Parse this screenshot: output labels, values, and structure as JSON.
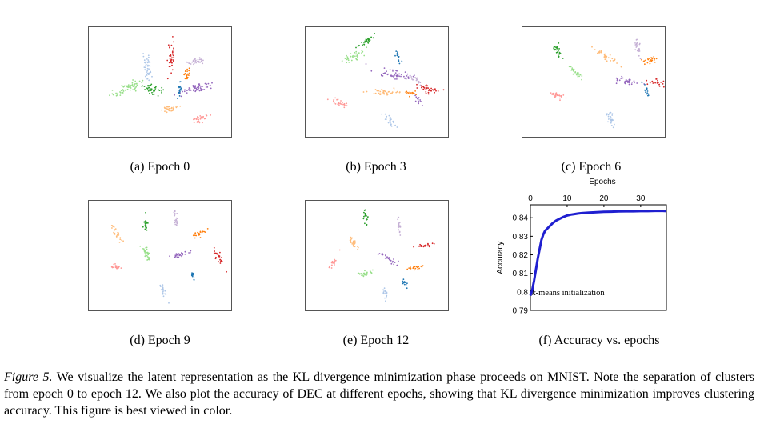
{
  "subplots": [
    {
      "caption": "(a) Epoch 0"
    },
    {
      "caption": "(b) Epoch 3"
    },
    {
      "caption": "(c) Epoch 6"
    },
    {
      "caption": "(d) Epoch 9"
    },
    {
      "caption": "(e) Epoch 12"
    },
    {
      "caption": "(f) Accuracy vs. epochs"
    }
  ],
  "figure_caption": {
    "label": "Figure 5.",
    "text": " We visualize the latent representation as the KL divergence minimization phase proceeds on MNIST. Note the separation of clusters from epoch 0 to epoch 12. We also plot the accuracy of DEC at different epochs, showing that KL divergence minimization improves clustering accuracy. This figure is best viewed in color."
  },
  "colors": {
    "blue": "#1f77b4",
    "orange": "#ff7f0e",
    "green": "#2ca02c",
    "red": "#d62728",
    "purple": "#9467bd",
    "light_blue": "#aec7e8",
    "light_orange": "#ffbb78",
    "light_green": "#98df8a",
    "pink": "#ff9896",
    "lavender": "#c5b0d5",
    "accuracy_line": "#1f1fd0"
  },
  "chart_data": [
    {
      "type": "scatter",
      "title": "(a) Epoch 0",
      "epoch": 0,
      "clusters": [
        {
          "color": "light_green",
          "cx": 0.27,
          "cy": 0.56,
          "angle": -20,
          "len": 0.13,
          "wid": 0.05,
          "n": 60
        },
        {
          "color": "green",
          "cx": 0.43,
          "cy": 0.56,
          "angle": 5,
          "len": 0.08,
          "wid": 0.05,
          "n": 40
        },
        {
          "color": "light_blue",
          "cx": 0.41,
          "cy": 0.35,
          "angle": 90,
          "len": 0.12,
          "wid": 0.04,
          "n": 45
        },
        {
          "color": "red",
          "cx": 0.58,
          "cy": 0.28,
          "angle": 90,
          "len": 0.12,
          "wid": 0.03,
          "n": 40
        },
        {
          "color": "lavender",
          "cx": 0.76,
          "cy": 0.31,
          "angle": -10,
          "len": 0.08,
          "wid": 0.03,
          "n": 30
        },
        {
          "color": "orange",
          "cx": 0.69,
          "cy": 0.44,
          "angle": 80,
          "len": 0.06,
          "wid": 0.03,
          "n": 25
        },
        {
          "color": "purple",
          "cx": 0.75,
          "cy": 0.56,
          "angle": -15,
          "len": 0.13,
          "wid": 0.04,
          "n": 55
        },
        {
          "color": "blue",
          "cx": 0.64,
          "cy": 0.58,
          "angle": 90,
          "len": 0.06,
          "wid": 0.02,
          "n": 20
        },
        {
          "color": "light_orange",
          "cx": 0.57,
          "cy": 0.75,
          "angle": -10,
          "len": 0.08,
          "wid": 0.03,
          "n": 30
        },
        {
          "color": "pink",
          "cx": 0.78,
          "cy": 0.83,
          "angle": -20,
          "len": 0.07,
          "wid": 0.04,
          "n": 30
        }
      ]
    },
    {
      "type": "scatter",
      "title": "(b) Epoch 3",
      "epoch": 3,
      "clusters": [
        {
          "color": "green",
          "cx": 0.42,
          "cy": 0.13,
          "angle": -30,
          "len": 0.08,
          "wid": 0.03,
          "n": 30
        },
        {
          "color": "light_green",
          "cx": 0.33,
          "cy": 0.27,
          "angle": -30,
          "len": 0.1,
          "wid": 0.04,
          "n": 35
        },
        {
          "color": "blue",
          "cx": 0.65,
          "cy": 0.26,
          "angle": 80,
          "len": 0.06,
          "wid": 0.02,
          "n": 15
        },
        {
          "color": "purple",
          "cx": 0.62,
          "cy": 0.43,
          "angle": 10,
          "len": 0.14,
          "wid": 0.04,
          "n": 50
        },
        {
          "color": "lavender",
          "cx": 0.78,
          "cy": 0.48,
          "angle": 30,
          "len": 0.06,
          "wid": 0.03,
          "n": 20
        },
        {
          "color": "red",
          "cx": 0.86,
          "cy": 0.56,
          "angle": 20,
          "len": 0.08,
          "wid": 0.04,
          "n": 35
        },
        {
          "color": "light_orange",
          "cx": 0.54,
          "cy": 0.59,
          "angle": 0,
          "len": 0.13,
          "wid": 0.03,
          "n": 40
        },
        {
          "color": "orange",
          "cx": 0.74,
          "cy": 0.6,
          "angle": 0,
          "len": 0.05,
          "wid": 0.02,
          "n": 15
        },
        {
          "color": "purple",
          "cx": 0.79,
          "cy": 0.67,
          "angle": 60,
          "len": 0.05,
          "wid": 0.03,
          "n": 15
        },
        {
          "color": "pink",
          "cx": 0.24,
          "cy": 0.69,
          "angle": 20,
          "len": 0.07,
          "wid": 0.03,
          "n": 25
        },
        {
          "color": "light_blue",
          "cx": 0.59,
          "cy": 0.85,
          "angle": 40,
          "len": 0.07,
          "wid": 0.03,
          "n": 25
        }
      ]
    },
    {
      "type": "scatter",
      "title": "(c) Epoch 6",
      "epoch": 6,
      "clusters": [
        {
          "color": "green",
          "cx": 0.25,
          "cy": 0.23,
          "angle": 60,
          "len": 0.08,
          "wid": 0.03,
          "n": 30
        },
        {
          "color": "light_green",
          "cx": 0.37,
          "cy": 0.41,
          "angle": 50,
          "len": 0.07,
          "wid": 0.03,
          "n": 30
        },
        {
          "color": "light_orange",
          "cx": 0.58,
          "cy": 0.26,
          "angle": 30,
          "len": 0.1,
          "wid": 0.03,
          "n": 35
        },
        {
          "color": "lavender",
          "cx": 0.81,
          "cy": 0.18,
          "angle": 80,
          "len": 0.08,
          "wid": 0.025,
          "n": 25
        },
        {
          "color": "orange",
          "cx": 0.91,
          "cy": 0.3,
          "angle": -20,
          "len": 0.07,
          "wid": 0.03,
          "n": 25
        },
        {
          "color": "purple",
          "cx": 0.73,
          "cy": 0.49,
          "angle": 10,
          "len": 0.09,
          "wid": 0.03,
          "n": 35
        },
        {
          "color": "blue",
          "cx": 0.87,
          "cy": 0.57,
          "angle": 70,
          "len": 0.05,
          "wid": 0.02,
          "n": 15
        },
        {
          "color": "red",
          "cx": 1.06,
          "cy": 0.51,
          "angle": 10,
          "len": 0.08,
          "wid": 0.03,
          "n": 30
        },
        {
          "color": "pink",
          "cx": 0.25,
          "cy": 0.63,
          "angle": 20,
          "len": 0.07,
          "wid": 0.03,
          "n": 25
        },
        {
          "color": "light_blue",
          "cx": 0.62,
          "cy": 0.83,
          "angle": 70,
          "len": 0.06,
          "wid": 0.03,
          "n": 25
        }
      ]
    },
    {
      "type": "scatter",
      "title": "(d) Epoch 9",
      "epoch": 9,
      "clusters": [
        {
          "color": "green",
          "cx": 0.4,
          "cy": 0.22,
          "angle": 85,
          "len": 0.07,
          "wid": 0.02,
          "n": 25
        },
        {
          "color": "lavender",
          "cx": 0.61,
          "cy": 0.16,
          "angle": 80,
          "len": 0.08,
          "wid": 0.02,
          "n": 25
        },
        {
          "color": "light_orange",
          "cx": 0.2,
          "cy": 0.3,
          "angle": 60,
          "len": 0.07,
          "wid": 0.025,
          "n": 25
        },
        {
          "color": "orange",
          "cx": 0.78,
          "cy": 0.3,
          "angle": -30,
          "len": 0.06,
          "wid": 0.025,
          "n": 22
        },
        {
          "color": "light_green",
          "cx": 0.4,
          "cy": 0.48,
          "angle": 70,
          "len": 0.08,
          "wid": 0.03,
          "n": 30
        },
        {
          "color": "purple",
          "cx": 0.63,
          "cy": 0.5,
          "angle": -20,
          "len": 0.09,
          "wid": 0.03,
          "n": 30
        },
        {
          "color": "red",
          "cx": 0.91,
          "cy": 0.51,
          "angle": 60,
          "len": 0.08,
          "wid": 0.03,
          "n": 28
        },
        {
          "color": "pink",
          "cx": 0.19,
          "cy": 0.6,
          "angle": 20,
          "len": 0.06,
          "wid": 0.025,
          "n": 22
        },
        {
          "color": "blue",
          "cx": 0.73,
          "cy": 0.68,
          "angle": 70,
          "len": 0.05,
          "wid": 0.015,
          "n": 12
        },
        {
          "color": "light_blue",
          "cx": 0.52,
          "cy": 0.82,
          "angle": 70,
          "len": 0.06,
          "wid": 0.025,
          "n": 22
        }
      ]
    },
    {
      "type": "scatter",
      "title": "(e) Epoch 12",
      "epoch": 12,
      "clusters": [
        {
          "color": "green",
          "cx": 0.42,
          "cy": 0.13,
          "angle": 80,
          "len": 0.06,
          "wid": 0.02,
          "n": 22
        },
        {
          "color": "lavender",
          "cx": 0.66,
          "cy": 0.24,
          "angle": 85,
          "len": 0.07,
          "wid": 0.02,
          "n": 22
        },
        {
          "color": "light_orange",
          "cx": 0.33,
          "cy": 0.38,
          "angle": 50,
          "len": 0.07,
          "wid": 0.025,
          "n": 25
        },
        {
          "color": "red",
          "cx": 0.83,
          "cy": 0.41,
          "angle": -15,
          "len": 0.07,
          "wid": 0.025,
          "n": 25
        },
        {
          "color": "purple",
          "cx": 0.59,
          "cy": 0.53,
          "angle": 30,
          "len": 0.08,
          "wid": 0.03,
          "n": 28
        },
        {
          "color": "orange",
          "cx": 0.77,
          "cy": 0.61,
          "angle": -10,
          "len": 0.06,
          "wid": 0.02,
          "n": 20
        },
        {
          "color": "pink",
          "cx": 0.19,
          "cy": 0.57,
          "angle": -60,
          "len": 0.06,
          "wid": 0.02,
          "n": 20
        },
        {
          "color": "light_green",
          "cx": 0.42,
          "cy": 0.66,
          "angle": -10,
          "len": 0.07,
          "wid": 0.03,
          "n": 25
        },
        {
          "color": "blue",
          "cx": 0.69,
          "cy": 0.73,
          "angle": 60,
          "len": 0.04,
          "wid": 0.02,
          "n": 12
        },
        {
          "color": "light_blue",
          "cx": 0.56,
          "cy": 0.85,
          "angle": 80,
          "len": 0.05,
          "wid": 0.025,
          "n": 20
        }
      ]
    },
    {
      "type": "line",
      "title": "(f) Accuracy vs. epochs",
      "xlabel": "Epochs",
      "ylabel": "Accuracy",
      "xlim": [
        0,
        37
      ],
      "ylim": [
        0.79,
        0.847
      ],
      "xticks": [
        0,
        10,
        20,
        30
      ],
      "yticks": [
        0.79,
        0.8,
        0.81,
        0.82,
        0.83,
        0.84
      ],
      "ytick_labels": [
        "0.79",
        "0.8",
        "0.81",
        "0.82",
        "0.83",
        "0.84"
      ],
      "x_axis_position": "top",
      "annotation": {
        "text": "k-means initialization",
        "italic_prefix": "k",
        "rest": "-means initialization"
      },
      "series": [
        {
          "x": [
            0,
            0.5,
            1,
            1.5,
            2,
            2.5,
            3,
            3.5,
            4,
            5,
            6,
            7,
            8,
            9,
            10,
            11,
            12,
            13,
            14,
            16,
            18,
            20,
            22,
            24,
            26,
            28,
            30,
            32,
            34,
            36,
            37
          ],
          "values": [
            0.798,
            0.801,
            0.806,
            0.812,
            0.818,
            0.823,
            0.828,
            0.831,
            0.833,
            0.835,
            0.837,
            0.8385,
            0.8395,
            0.8405,
            0.8412,
            0.8417,
            0.842,
            0.8423,
            0.8425,
            0.8428,
            0.843,
            0.8432,
            0.8433,
            0.8434,
            0.8435,
            0.8435,
            0.8436,
            0.8436,
            0.8437,
            0.8437,
            0.8436
          ]
        }
      ]
    }
  ]
}
